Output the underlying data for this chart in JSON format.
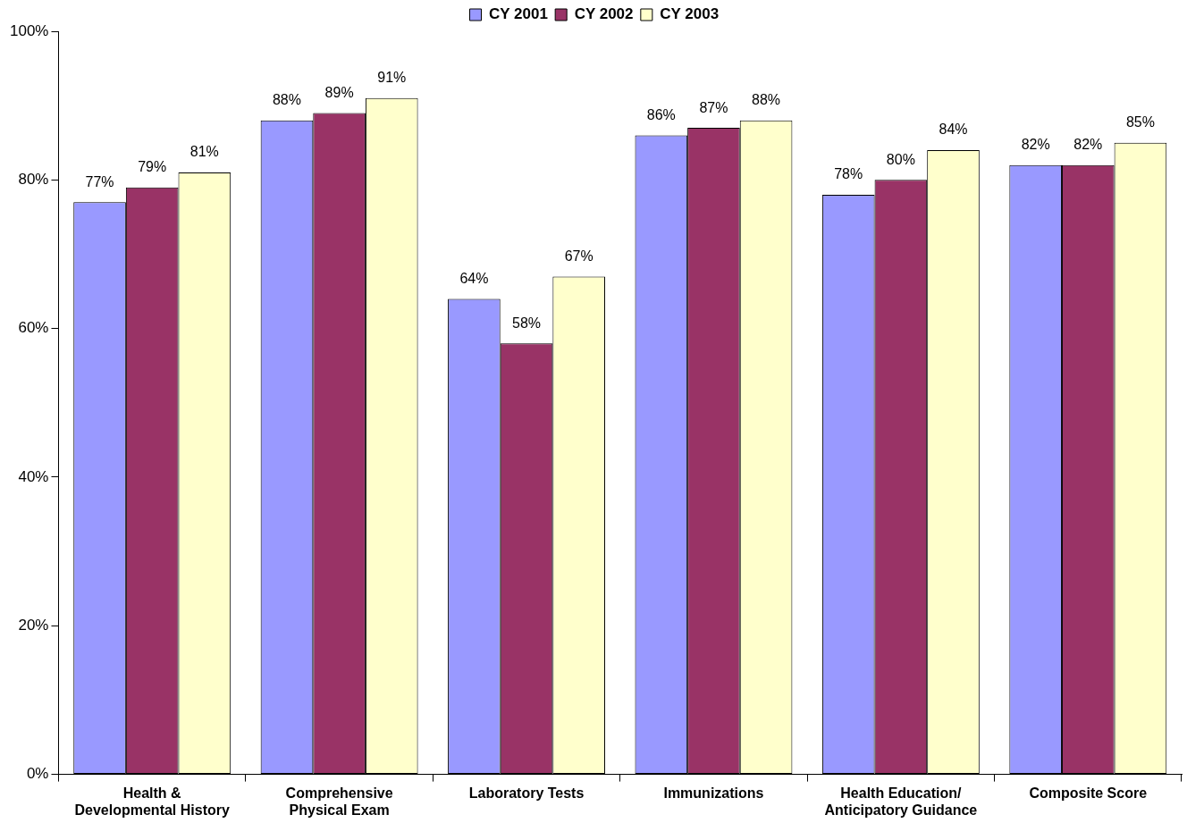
{
  "chart_data": {
    "type": "bar",
    "categories": [
      "Health & Developmental History",
      "Comprehensive Physical Exam",
      "Laboratory Tests",
      "Immunizations",
      "Health Education/ Anticipatory Guidance",
      "Composite Score"
    ],
    "series": [
      {
        "name": "CY 2001",
        "color": "#9999ff",
        "values": [
          77,
          88,
          64,
          86,
          78,
          82
        ],
        "value_labels": [
          "77%",
          "88%",
          "64%",
          "86%",
          "78%",
          "82%"
        ]
      },
      {
        "name": "CY 2002",
        "color": "#993366",
        "values": [
          79,
          89,
          58,
          87,
          80,
          82
        ],
        "value_labels": [
          "79%",
          "89%",
          "58%",
          "87%",
          "80%",
          "82%"
        ]
      },
      {
        "name": "CY 2003",
        "color": "#ffffcc",
        "values": [
          81,
          91,
          67,
          88,
          84,
          85
        ],
        "value_labels": [
          "81%",
          "91%",
          "67%",
          "88%",
          "84%",
          "85%"
        ]
      }
    ],
    "ylim": [
      0,
      100
    ],
    "yticks": [
      {
        "value": 0,
        "label": "0%"
      },
      {
        "value": 20,
        "label": "20%"
      },
      {
        "value": 40,
        "label": "40%"
      },
      {
        "value": 60,
        "label": "60%"
      },
      {
        "value": 80,
        "label": "80%"
      },
      {
        "value": 100,
        "label": "100%"
      }
    ],
    "legend": "top"
  }
}
